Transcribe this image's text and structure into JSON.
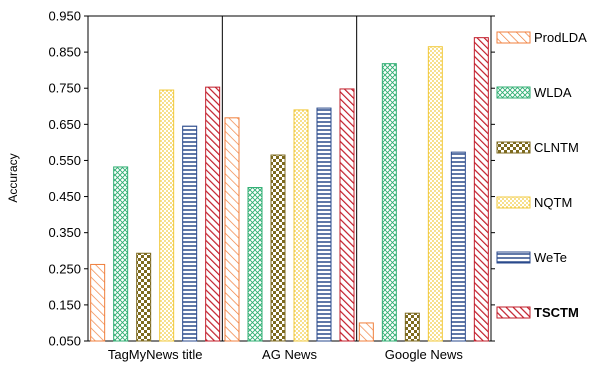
{
  "chart_data": {
    "type": "bar",
    "title": "",
    "xlabel": "",
    "ylabel": "Accuracy",
    "ylim": [
      0.05,
      0.95
    ],
    "yticks": [
      "0.050",
      "0.150",
      "0.250",
      "0.350",
      "0.450",
      "0.550",
      "0.650",
      "0.750",
      "0.850",
      "0.950"
    ],
    "categories": [
      "TagMyNews title",
      "AG News",
      "Google News"
    ],
    "grid": false,
    "legend_position": "right",
    "series": [
      {
        "name": "ProdLDA",
        "values": [
          0.262,
          0.668,
          0.1
        ],
        "color": "#F07F3C",
        "pattern": "diagonal-light"
      },
      {
        "name": "WLDA",
        "values": [
          0.532,
          0.475,
          0.818
        ],
        "color": "#2FAE72",
        "pattern": "crosshatch"
      },
      {
        "name": "CLNTM",
        "values": [
          0.293,
          0.565,
          0.127
        ],
        "color": "#7D6A1F",
        "pattern": "checker"
      },
      {
        "name": "NQTM",
        "values": [
          0.745,
          0.69,
          0.865
        ],
        "color": "#F2CA3C",
        "pattern": "dotted"
      },
      {
        "name": "WeTe",
        "values": [
          0.645,
          0.695,
          0.573
        ],
        "color": "#2A4A8C",
        "pattern": "horizontal"
      },
      {
        "name": "TSCTM",
        "values": [
          0.753,
          0.748,
          0.89
        ],
        "color": "#C21D2A",
        "pattern": "diagonal-heavy",
        "bold": true
      }
    ]
  }
}
